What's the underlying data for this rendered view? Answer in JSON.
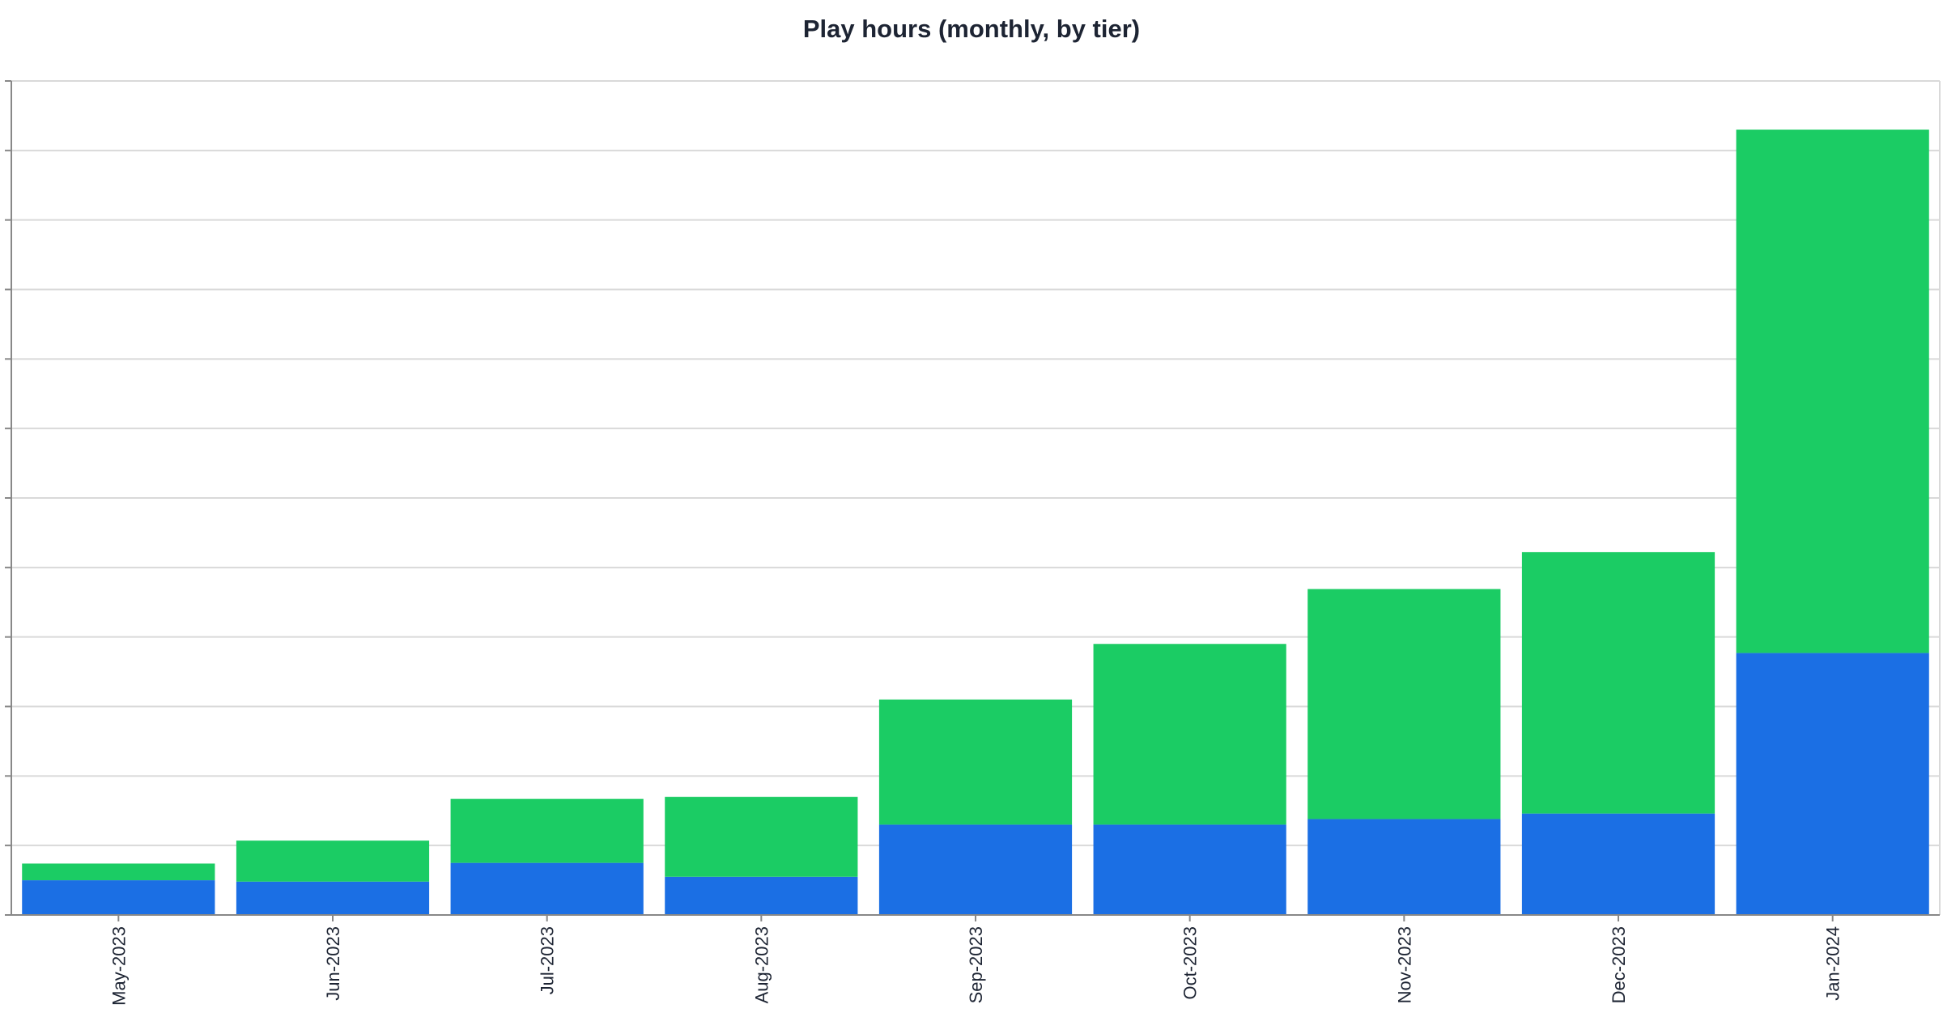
{
  "chart_data": {
    "type": "bar",
    "stacked": true,
    "title": "Play hours (monthly, by tier)",
    "xlabel": "",
    "ylabel": "",
    "categories": [
      "May-2023",
      "Jun-2023",
      "Jul-2023",
      "Aug-2023",
      "Sep-2023",
      "Oct-2023",
      "Nov-2023",
      "Dec-2023",
      "Jan-2024"
    ],
    "series": [
      {
        "color": "#1b6fe4",
        "values": [
          0.5,
          0.48,
          0.75,
          0.55,
          1.3,
          1.3,
          1.38,
          1.46,
          3.77
        ]
      },
      {
        "color": "#1bcc64",
        "values": [
          0.24,
          0.59,
          0.92,
          1.15,
          1.8,
          2.6,
          3.31,
          3.76,
          7.53
        ]
      }
    ],
    "ylim": [
      0,
      12
    ],
    "y_gridlines": 12,
    "grid": true,
    "legend": "none"
  }
}
